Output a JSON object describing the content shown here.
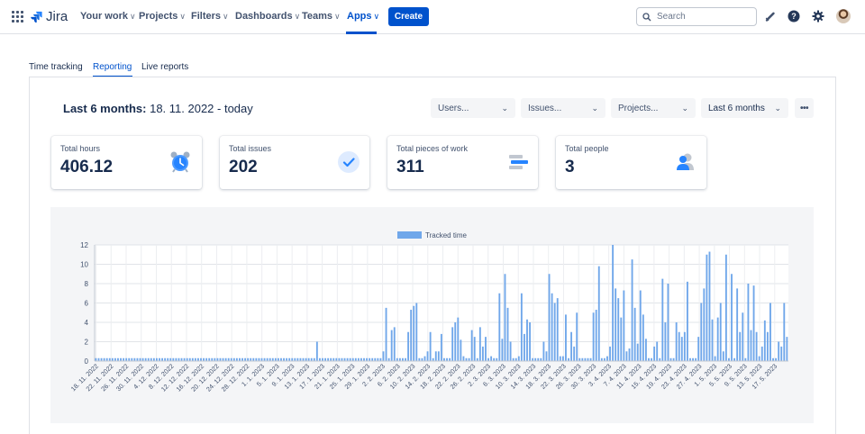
{
  "app": {
    "name": "Jira"
  },
  "nav": {
    "items": [
      {
        "label": "Your work",
        "chev": "∨"
      },
      {
        "label": "Projects",
        "chev": "∨"
      },
      {
        "label": "Filters",
        "chev": "∨"
      },
      {
        "label": "Dashboards",
        "chev": "∨"
      },
      {
        "label": "Teams",
        "chev": "∨"
      },
      {
        "label": "Apps",
        "chev": "∨"
      }
    ],
    "create_label": "Create",
    "search_placeholder": "Search"
  },
  "tabs": [
    {
      "label": "Time tracking"
    },
    {
      "label": "Reporting"
    },
    {
      "label": "Live reports"
    }
  ],
  "report": {
    "period_bold": "Last 6 months:",
    "period_range": "18. 11. 2022 - today",
    "filters": {
      "users": "Users...",
      "issues": "Issues...",
      "projects": "Projects...",
      "period": "Last 6 months"
    },
    "more_label": "•••"
  },
  "cards": [
    {
      "label": "Total hours",
      "value": "406.12",
      "icon": "alarm-clock-icon"
    },
    {
      "label": "Total issues",
      "value": "202",
      "icon": "checkmark-icon"
    },
    {
      "label": "Total pieces of work",
      "value": "311",
      "icon": "stacked-bars-icon"
    },
    {
      "label": "Total people",
      "value": "3",
      "icon": "person-icon"
    }
  ],
  "colors": {
    "accent": "#0052cc",
    "bar": "#70a7ea",
    "chart_bg": "#f4f5f7"
  },
  "chart_data": {
    "type": "bar",
    "legend": "Tracked time",
    "legend_position": "top-center",
    "grid": true,
    "ylim": [
      0,
      12
    ],
    "yticks": [
      0,
      2,
      4,
      6,
      8,
      10,
      12
    ],
    "tick_labels": [
      "18. 11. 2022",
      "22. 11. 2022",
      "26. 11. 2022",
      "30. 11. 2022",
      "4. 12. 2022",
      "8. 12. 2022",
      "12. 12. 2022",
      "16. 12. 2022",
      "20. 12. 2022",
      "24. 12. 2022",
      "28. 12. 2022",
      "1. 1. 2023",
      "5. 1. 2023",
      "9. 1. 2023",
      "13. 1. 2023",
      "17. 1. 2023",
      "21. 1. 2023",
      "25. 1. 2023",
      "29. 1. 2023",
      "2. 2. 2023",
      "6. 2. 2023",
      "10. 2. 2023",
      "14. 2. 2023",
      "18. 2. 2023",
      "22. 2. 2023",
      "26. 2. 2023",
      "2. 3. 2023",
      "6. 3. 2023",
      "10. 3. 2023",
      "14. 3. 2023",
      "18. 3. 2023",
      "22. 3. 2023",
      "26. 3. 2023",
      "30. 3. 2023",
      "3. 4. 2023",
      "7. 4. 2023",
      "11. 4. 2023",
      "15. 4. 2023",
      "19. 4. 2023",
      "23. 4. 2023",
      "27. 4. 2023",
      "1. 5. 2023",
      "5. 5. 2023",
      "9. 5. 2023",
      "13. 5. 2023",
      "17. 5. 2023"
    ],
    "values": [
      0.3,
      0.3,
      0.3,
      0.3,
      0.3,
      0.3,
      0.3,
      0.3,
      0.3,
      0.3,
      0.3,
      0.3,
      0.3,
      0.3,
      0.3,
      0.3,
      0.3,
      0.3,
      0.3,
      0.3,
      0.3,
      0.3,
      0.3,
      0.3,
      0.3,
      0.3,
      0.3,
      0.3,
      0.3,
      0.3,
      0.3,
      0.3,
      0.3,
      0.3,
      0.3,
      0.3,
      0.3,
      0.3,
      0.3,
      0.3,
      0.3,
      0.3,
      0.3,
      0.3,
      0.3,
      0.3,
      0.3,
      0.3,
      0.3,
      0.3,
      0.3,
      0.3,
      0.3,
      0.3,
      0.3,
      0.3,
      0.3,
      0.3,
      0.3,
      0.3,
      0.3,
      0.3,
      0.3,
      0.3,
      0.3,
      0.3,
      0.3,
      0.3,
      0.3,
      0.3,
      0.3,
      0.3,
      0.3,
      0.3,
      0.3,
      0.3,
      0.3,
      0.3,
      0.3,
      0.3,
      2.0,
      0.3,
      0.3,
      0.3,
      0.3,
      0.3,
      0.3,
      0.3,
      0.3,
      0.3,
      0.3,
      0.3,
      0.3,
      0.3,
      0.3,
      0.3,
      0.3,
      0.3,
      0.3,
      0.3,
      0.3,
      0.3,
      0.3,
      0.3,
      1.0,
      5.5,
      0.3,
      3.2,
      3.5,
      0.3,
      0.3,
      0.3,
      0.3,
      3.0,
      5.3,
      5.7,
      6.0,
      0.3,
      0.3,
      0.5,
      1.0,
      3.0,
      0.3,
      1.0,
      1.0,
      2.8,
      0.3,
      0.3,
      0.3,
      3.5,
      4.0,
      4.5,
      2.2,
      0.5,
      0.3,
      0.3,
      3.2,
      2.5,
      0.3,
      3.5,
      1.5,
      2.5,
      0.3,
      0.5,
      0.3,
      0.3,
      7.0,
      2.3,
      9.0,
      5.5,
      2.0,
      0.3,
      0.3,
      0.5,
      7.0,
      2.8,
      4.3,
      4.0,
      0.3,
      0.3,
      0.3,
      0.3,
      2.0,
      1.0,
      9.0,
      7.0,
      6.0,
      6.5,
      0.5,
      0.5,
      4.8,
      0.3,
      3.0,
      1.5,
      5.0,
      0.3,
      0.3,
      0.3,
      0.3,
      0.3,
      5.0,
      5.3,
      9.8,
      0.3,
      0.3,
      0.5,
      1.5,
      12.0,
      7.5,
      6.5,
      4.5,
      7.3,
      1.0,
      1.3,
      10.5,
      5.5,
      1.8,
      7.3,
      4.8,
      2.3,
      0.3,
      0.3,
      1.5,
      2.0,
      0.3,
      8.5,
      4.0,
      8.0,
      0.3,
      0.3,
      4.0,
      3.0,
      2.5,
      3.0,
      8.2,
      0.3,
      0.3,
      0.3,
      2.5,
      6.0,
      7.5,
      11.0,
      11.3,
      4.3,
      0.5,
      4.5,
      6.0,
      1.0,
      11.0,
      0.3,
      9.0,
      0.3,
      7.5,
      3.0,
      5.0,
      0.3,
      8.0,
      3.2,
      7.8,
      3.0,
      0.5,
      1.5,
      4.2,
      3.0,
      6.0,
      0.3,
      0.3,
      2.0,
      1.5,
      6.0,
      2.5
    ]
  }
}
